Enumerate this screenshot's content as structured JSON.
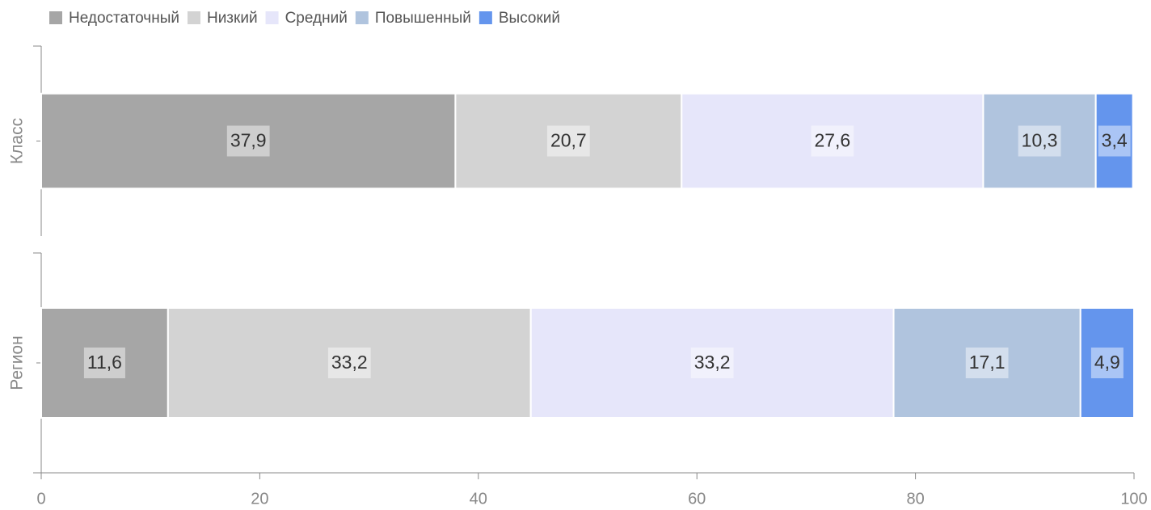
{
  "chart_data": {
    "type": "bar",
    "orientation": "horizontal",
    "stacked": true,
    "categories": [
      "Класс",
      "Регион"
    ],
    "series": [
      {
        "name": "Недостаточный",
        "color": "#a6a6a6",
        "values": [
          37.9,
          11.6
        ],
        "value_labels": [
          "37,9",
          "11,6"
        ]
      },
      {
        "name": "Низкий",
        "color": "#d3d3d3",
        "values": [
          20.7,
          33.2
        ],
        "value_labels": [
          "20,7",
          "33,2"
        ]
      },
      {
        "name": "Средний",
        "color": "#e6e6fa",
        "values": [
          27.6,
          33.2
        ],
        "value_labels": [
          "27,6",
          "33,2"
        ]
      },
      {
        "name": "Повышенный",
        "color": "#b0c4de",
        "values": [
          10.3,
          17.1
        ],
        "value_labels": [
          "10,3",
          "17,1"
        ]
      },
      {
        "name": "Высокий",
        "color": "#6495ed",
        "values": [
          3.4,
          4.9
        ],
        "value_labels": [
          "3,4",
          "4,9"
        ]
      }
    ],
    "xlim": [
      0,
      100
    ],
    "xticks": [
      0,
      20,
      40,
      60,
      80,
      100
    ],
    "legend": "top-left"
  }
}
